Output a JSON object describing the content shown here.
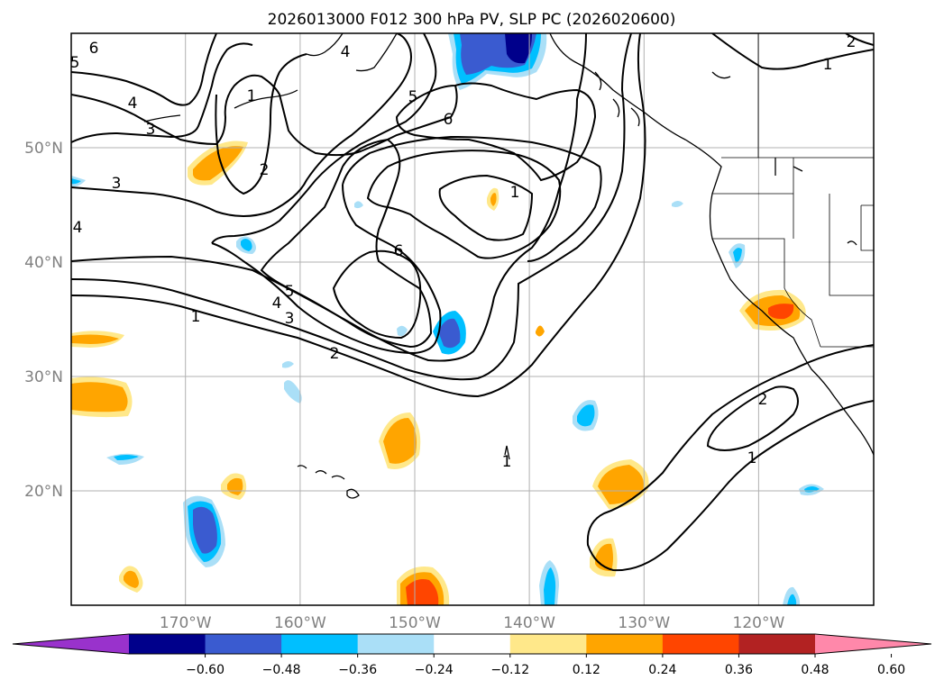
{
  "chart_data": {
    "type": "contour-map",
    "title": "2026013000 F012 300 hPa PV, SLP PC (2026020600)",
    "map": {
      "lon_range": [
        180,
        110
      ],
      "lat_range": [
        10,
        60
      ],
      "lon_ticks": [
        "170°W",
        "160°W",
        "150°W",
        "140°W",
        "130°W",
        "120°W"
      ],
      "lat_ticks": [
        "50°N",
        "40°N",
        "30°N",
        "20°N"
      ],
      "grid": true,
      "coastlines": true
    },
    "colorbar": {
      "orientation": "horizontal",
      "extend": "both",
      "levels": [
        -0.6,
        -0.48,
        -0.36,
        -0.24,
        -0.12,
        0.12,
        0.24,
        0.36,
        0.48,
        0.6
      ],
      "tick_labels": [
        "−0.60",
        "−0.48",
        "−0.36",
        "−0.24",
        "−0.12",
        "0.12",
        "0.24",
        "0.36",
        "0.48",
        "0.60"
      ],
      "colors": [
        "#9932cc",
        "#00008b",
        "#3a5bd0",
        "#00bfff",
        "#aadff7",
        "#ffffff",
        "#ffe88a",
        "#ffa500",
        "#ff4500",
        "#b22222",
        "#ff88aa"
      ]
    },
    "contours": {
      "variable": "SLP PC",
      "labels": [
        "1",
        "2",
        "3",
        "4",
        "5",
        "6"
      ]
    },
    "pv_anomalies": [
      {
        "lon": -148,
        "lat": 56,
        "value": -0.48
      },
      {
        "lon": -144,
        "lat": 58,
        "value": -0.6
      },
      {
        "lon": -167,
        "lat": 16,
        "value": -0.48
      },
      {
        "lon": -147,
        "lat": 34,
        "value": -0.48
      },
      {
        "lon": -135,
        "lat": 27,
        "value": -0.36
      },
      {
        "lon": -136,
        "lat": 12,
        "value": -0.36
      },
      {
        "lon": -178,
        "lat": 23,
        "value": -0.36
      },
      {
        "lon": -150,
        "lat": 11,
        "value": 0.48
      },
      {
        "lon": -148,
        "lat": 25,
        "value": 0.36
      },
      {
        "lon": -132,
        "lat": 21,
        "value": 0.36
      },
      {
        "lon": -119,
        "lat": 36,
        "value": 0.48
      },
      {
        "lon": -176,
        "lat": 28,
        "value": 0.36
      },
      {
        "lon": -167,
        "lat": 48,
        "value": 0.36
      }
    ]
  }
}
